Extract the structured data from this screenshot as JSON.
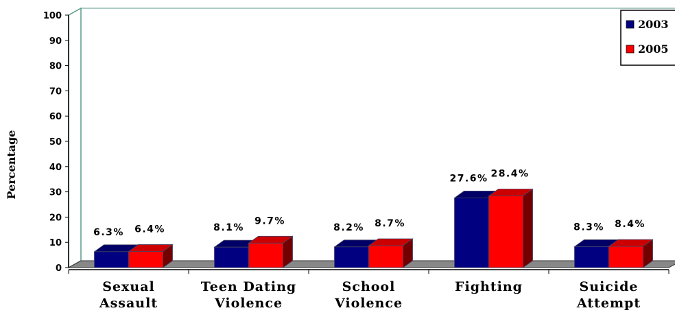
{
  "chart_data": {
    "type": "bar3d",
    "y_label": "Percentage",
    "categories": [
      "Sexual Assault",
      "Teen Dating Violence",
      "School Violence",
      "Fighting",
      "Suicide Attempt"
    ],
    "series": [
      {
        "name": "2003",
        "color": "#000080",
        "values": [
          6.3,
          8.1,
          8.2,
          27.6,
          8.3
        ],
        "value_labels": [
          "6.3%",
          "8.1%",
          "8.2%",
          "27.6%",
          "8.3%"
        ]
      },
      {
        "name": "2005",
        "color": "#ff0000",
        "values": [
          6.4,
          9.7,
          8.7,
          28.4,
          8.4
        ],
        "value_labels": [
          "6.4%",
          "9.7%",
          "8.7%",
          "28.4%",
          "8.4%"
        ]
      }
    ],
    "ylim": [
      0,
      100
    ],
    "yticks": [
      0,
      10,
      20,
      30,
      40,
      50,
      60,
      70,
      80,
      90,
      100
    ],
    "legend": "top-right"
  }
}
